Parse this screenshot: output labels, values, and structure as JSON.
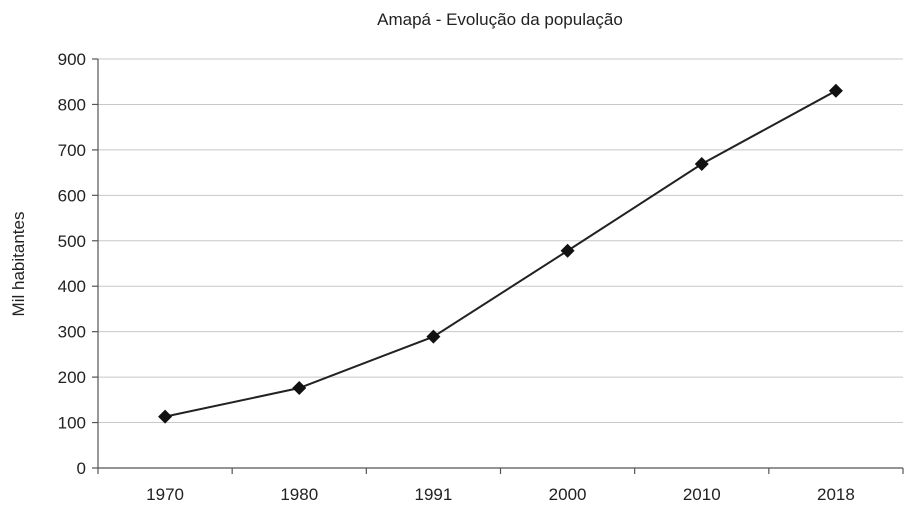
{
  "chart_data": {
    "type": "line",
    "title": "Amapá - Evolução da população",
    "xlabel": "",
    "ylabel": "Mil habitantes",
    "categories": [
      "1970",
      "1980",
      "1991",
      "2000",
      "2010",
      "2018"
    ],
    "series": [
      {
        "values": [
          113,
          176,
          289,
          478,
          669,
          830
        ]
      }
    ],
    "ylim": [
      0,
      900
    ],
    "yticks": [
      0,
      100,
      200,
      300,
      400,
      500,
      600,
      700,
      800,
      900
    ],
    "grid": "horizontal",
    "marker": "diamond",
    "legend": "none",
    "colors": {
      "line": "#222222",
      "marker": "#111111",
      "grid": "#c8c8c8",
      "axis": "#555555"
    }
  }
}
